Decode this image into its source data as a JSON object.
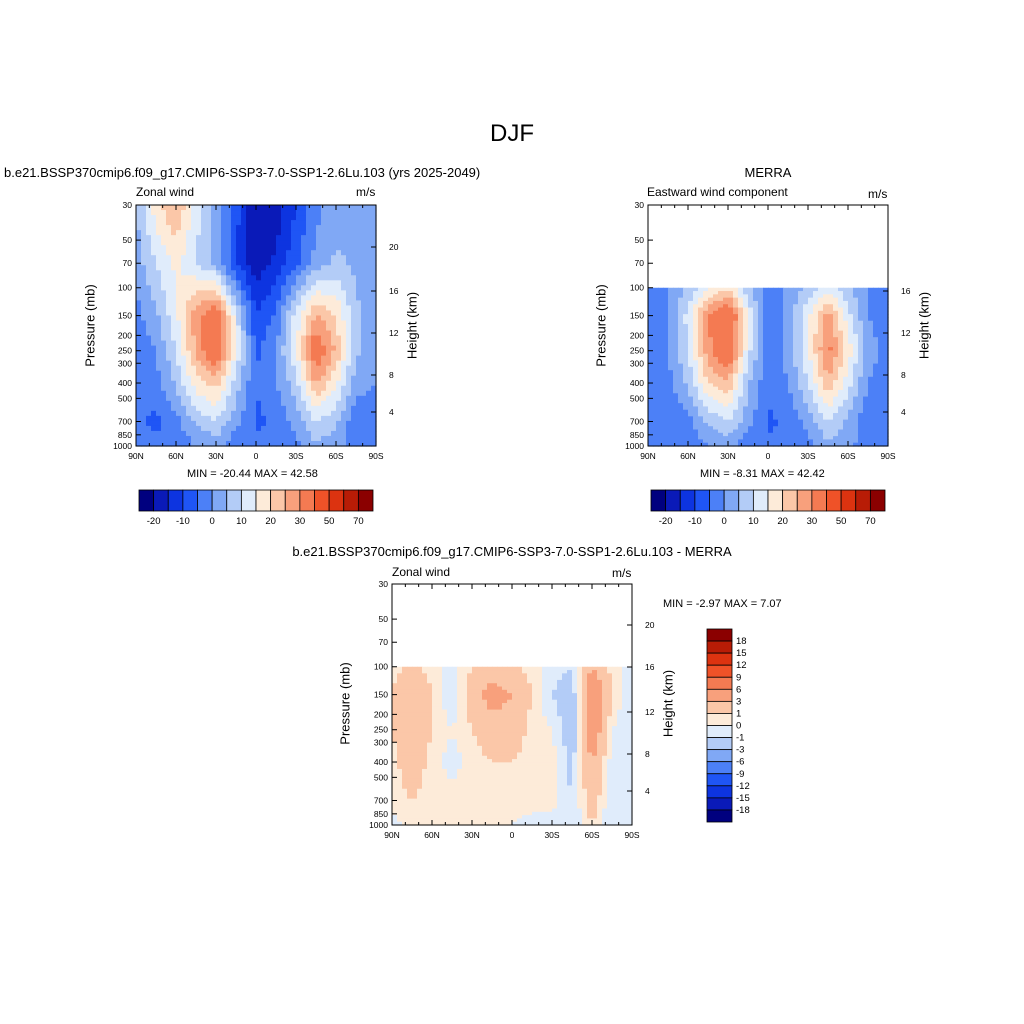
{
  "figure": {
    "title": "DJF",
    "panels": [
      {
        "title": "b.e21.BSSP370cmip6.f09_g17.CMIP6-SSP3-7.0-SSP1-2.6Lu.103 (yrs 2025-2049)",
        "left_label": "Zonal wind",
        "right_label": "m/s",
        "ylabel": "Pressure (mb)",
        "y2label": "Height (km)",
        "stats": "MIN = -20.44  MAX =  42.58"
      },
      {
        "title": "MERRA",
        "left_label": "Eastward wind component",
        "right_label": "m/s",
        "ylabel": "Pressure (mb)",
        "y2label": "Height (km)",
        "stats": "MIN =  -8.31  MAX =  42.42"
      },
      {
        "title": "b.e21.BSSP370cmip6.f09_g17.CMIP6-SSP3-7.0-SSP1-2.6Lu.103 - MERRA",
        "left_label": "Zonal wind",
        "right_label": "m/s",
        "ylabel": "Pressure (mb)",
        "y2label": "Height (km)",
        "stats": "MIN =  -2.97  MAX =   7.07"
      }
    ]
  },
  "chart_data": [
    {
      "type": "heatmap",
      "subtype": "latitude-pressure contour",
      "x": [
        "90N",
        "60N",
        "30N",
        "0",
        "30S",
        "60S",
        "90S"
      ],
      "y_pressure_ticks": [
        "30",
        "50",
        "70",
        "100",
        "150",
        "200",
        "250",
        "300",
        "400",
        "500",
        "700",
        "850",
        "1000"
      ],
      "y_height_ticks": [
        "4",
        "8",
        "12",
        "16",
        "20"
      ],
      "ylim_mb": [
        1000,
        30
      ],
      "min": -20.44,
      "max": 42.58,
      "levels": [
        "-20",
        "-10",
        "0",
        "10",
        "20",
        "30",
        "50",
        "70"
      ],
      "colors": [
        "#00007f",
        "#0a1ab8",
        "#0d34e0",
        "#1f55f5",
        "#4c80f7",
        "#80a8f5",
        "#b3ccf7",
        "#e0ecfb",
        "#fdebd9",
        "#fbc7a8",
        "#f8a07c",
        "#f47a52",
        "#ef5228",
        "#dc3310",
        "#b81c06",
        "#8b0000"
      ]
    },
    {
      "type": "heatmap",
      "subtype": "latitude-pressure contour",
      "x": [
        "90N",
        "60N",
        "30N",
        "0",
        "30S",
        "60S",
        "90S"
      ],
      "y_pressure_ticks": [
        "30",
        "50",
        "70",
        "100",
        "150",
        "200",
        "250",
        "300",
        "400",
        "500",
        "700",
        "850",
        "1000"
      ],
      "y_height_ticks": [
        "4",
        "8",
        "12",
        "16"
      ],
      "ylim_mb": [
        1000,
        30
      ],
      "data_top_mb": 100,
      "min": -8.31,
      "max": 42.42,
      "levels": [
        "-20",
        "-10",
        "0",
        "10",
        "20",
        "30",
        "50",
        "70"
      ],
      "colors": [
        "#00007f",
        "#0a1ab8",
        "#0d34e0",
        "#1f55f5",
        "#4c80f7",
        "#80a8f5",
        "#b3ccf7",
        "#e0ecfb",
        "#fdebd9",
        "#fbc7a8",
        "#f8a07c",
        "#f47a52",
        "#ef5228",
        "#dc3310",
        "#b81c06",
        "#8b0000"
      ]
    },
    {
      "type": "heatmap",
      "subtype": "latitude-pressure contour (difference)",
      "x": [
        "90N",
        "60N",
        "30N",
        "0",
        "30S",
        "60S",
        "90S"
      ],
      "y_pressure_ticks": [
        "30",
        "50",
        "70",
        "100",
        "150",
        "200",
        "250",
        "300",
        "400",
        "500",
        "700",
        "850",
        "1000"
      ],
      "y_height_ticks": [
        "4",
        "8",
        "12",
        "16",
        "20"
      ],
      "ylim_mb": [
        1000,
        30
      ],
      "data_top_mb": 100,
      "min": -2.97,
      "max": 7.07,
      "levels": [
        "18",
        "15",
        "12",
        "9",
        "6",
        "3",
        "1",
        "0",
        "-1",
        "-3",
        "-6",
        "-9",
        "-12",
        "-15",
        "-18"
      ],
      "colors": [
        "#8b0000",
        "#b81c06",
        "#dc3310",
        "#ef5228",
        "#f47a52",
        "#f8a07c",
        "#fbc7a8",
        "#fdebd9",
        "#e0ecfb",
        "#b3ccf7",
        "#80a8f5",
        "#4c80f7",
        "#1f55f5",
        "#0d34e0",
        "#0a1ab8",
        "#00007f"
      ]
    }
  ]
}
